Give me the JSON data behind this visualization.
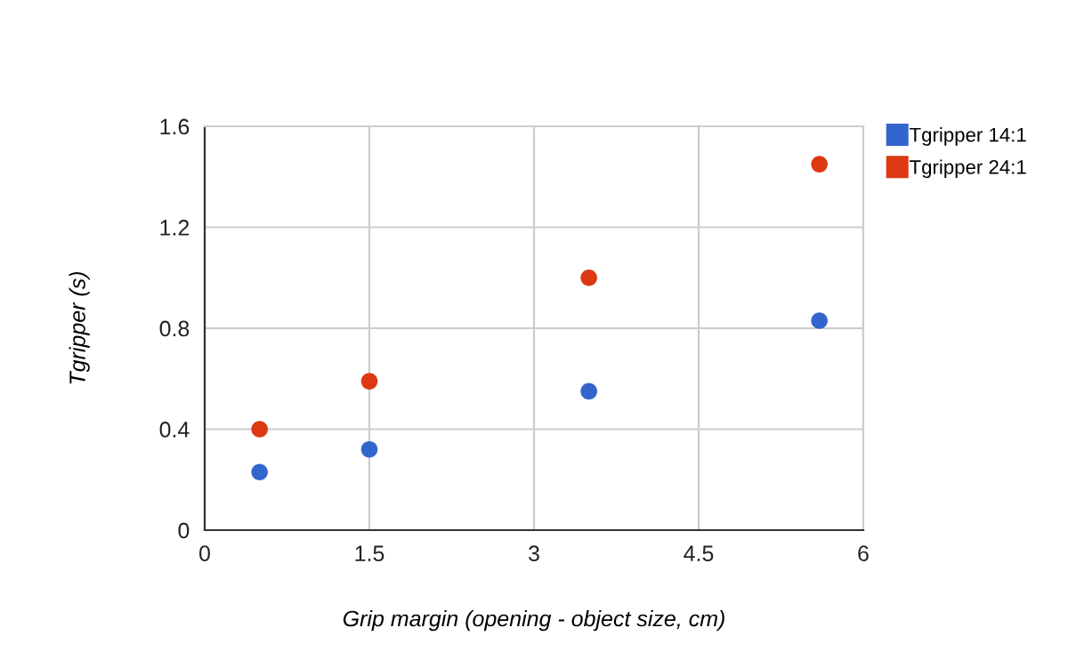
{
  "chart_data": {
    "type": "scatter",
    "xlabel": "Grip margin (opening - object size, cm)",
    "ylabel": "Tgripper (s)",
    "x": [
      0.5,
      1.5,
      3.5,
      5.6
    ],
    "series": [
      {
        "name": "Tgripper 14:1",
        "color": "#3366cc",
        "values": [
          0.23,
          0.32,
          0.55,
          0.83
        ]
      },
      {
        "name": "Tgripper 24:1",
        "color": "#dc3912",
        "values": [
          0.4,
          0.59,
          1.0,
          1.45
        ]
      }
    ],
    "xlim": [
      0,
      6
    ],
    "xticks": [
      0,
      1.5,
      3,
      4.5,
      6
    ],
    "ylim": [
      0,
      1.6
    ],
    "yticks": [
      0,
      0.4,
      0.8,
      1.2,
      1.6
    ],
    "grid": true,
    "legend": "top right",
    "marker": "circle"
  }
}
